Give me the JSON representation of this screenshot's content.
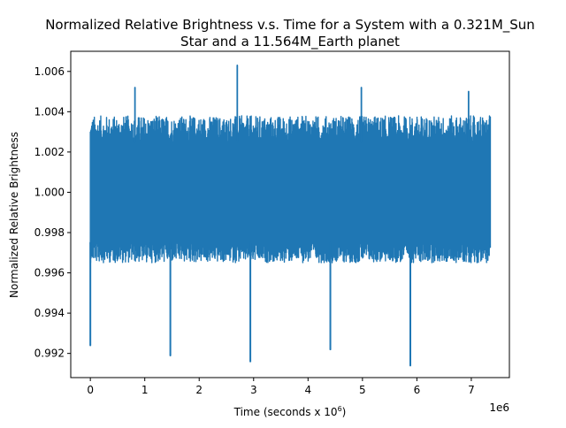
{
  "chart_data": {
    "type": "line",
    "title_line1": "Normalized Relative Brightness v.s. Time for a System with a 0.321M_Sun",
    "title_line2": "Star and a 11.564M_Earth planet",
    "xlabel_prefix": "Time (seconds x 10",
    "xlabel_exponent": "6",
    "xlabel_suffix": ")",
    "ylabel": "Normalized Relative Brightness",
    "x_offset_label": "1e6",
    "xlim": [
      -0.36,
      7.7
    ],
    "ylim": [
      0.9908,
      1.007
    ],
    "x_ticks": [
      0,
      1,
      2,
      3,
      4,
      5,
      6,
      7
    ],
    "x_tick_labels": [
      "0",
      "1",
      "2",
      "3",
      "4",
      "5",
      "6",
      "7"
    ],
    "y_ticks": [
      0.992,
      0.994,
      0.996,
      0.998,
      1.0,
      1.002,
      1.004,
      1.006
    ],
    "y_tick_labels": [
      "0.992",
      "0.994",
      "0.996",
      "0.998",
      "1.000",
      "1.002",
      "1.004",
      "1.006"
    ],
    "grid": false,
    "legend": "none",
    "line_color": "#1f77b4",
    "series": [
      {
        "x_range": [
          0,
          7.35
        ],
        "typical_band": [
          0.9975,
          1.0025
        ],
        "noise_extent": [
          0.9965,
          1.0038
        ],
        "transit_dips": [
          {
            "x": 0.0,
            "y": 0.9924
          },
          {
            "x": 1.47,
            "y": 0.9919
          },
          {
            "x": 2.94,
            "y": 0.9916
          },
          {
            "x": 4.41,
            "y": 0.9922
          },
          {
            "x": 5.88,
            "y": 0.9914
          }
        ],
        "peaks": [
          {
            "x": 0.82,
            "y": 1.0052
          },
          {
            "x": 2.7,
            "y": 1.0063
          },
          {
            "x": 4.98,
            "y": 1.0052
          },
          {
            "x": 6.95,
            "y": 1.005
          }
        ]
      }
    ]
  }
}
